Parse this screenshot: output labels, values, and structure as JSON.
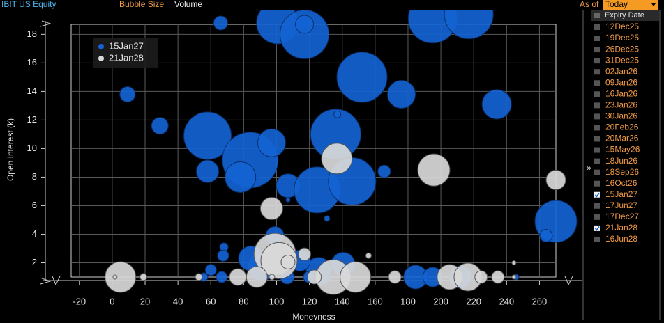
{
  "header": {
    "ticker": "IBIT US Equity",
    "bubble_size_label": "Bubble Size",
    "bubble_size_value": "Volume",
    "as_of_label": "As of",
    "as_of_value": "Today"
  },
  "expiry_panel": {
    "toggle": "»",
    "header": "Expiry Date",
    "items": [
      {
        "label": "12Dec25",
        "checked": false
      },
      {
        "label": "19Dec25",
        "checked": false
      },
      {
        "label": "26Dec25",
        "checked": false
      },
      {
        "label": "31Dec25",
        "checked": false
      },
      {
        "label": "02Jan26",
        "checked": false
      },
      {
        "label": "09Jan26",
        "checked": false
      },
      {
        "label": "16Jan26",
        "checked": false
      },
      {
        "label": "23Jan26",
        "checked": false
      },
      {
        "label": "30Jan26",
        "checked": false
      },
      {
        "label": "20Feb26",
        "checked": false
      },
      {
        "label": "20Mar26",
        "checked": false
      },
      {
        "label": "15May26",
        "checked": false
      },
      {
        "label": "18Jun26",
        "checked": false
      },
      {
        "label": "18Sep26",
        "checked": false
      },
      {
        "label": "16Oct26",
        "checked": false
      },
      {
        "label": "15Jan27",
        "checked": true
      },
      {
        "label": "17Jun27",
        "checked": false
      },
      {
        "label": "17Dec27",
        "checked": false
      },
      {
        "label": "21Jan28",
        "checked": true
      },
      {
        "label": "16Jun28",
        "checked": false
      }
    ]
  },
  "chart_data": {
    "type": "bubble",
    "x_label": "Moneyness",
    "y_label": "Open Interest (k)",
    "xlim": [
      -25,
      270
    ],
    "ylim": [
      1,
      18.7
    ],
    "xticks": [
      -20,
      0,
      20,
      40,
      60,
      80,
      100,
      120,
      140,
      160,
      180,
      200,
      220,
      240,
      260
    ],
    "yticks": [
      2,
      4,
      6,
      8,
      10,
      12,
      14,
      16,
      18
    ],
    "grid": true,
    "legend": "upper left",
    "series": [
      {
        "name": "15Jan27",
        "color": "#1463d4",
        "x": [
          66,
          100.6,
          117,
          117,
          195,
          217,
          9.3,
          29,
          58,
          58,
          84,
          97,
          78,
          107,
          136,
          137,
          124.7,
          146,
          152,
          176,
          234,
          165.5,
          130.7,
          107,
          270,
          264,
          99,
          68,
          67.5,
          90.8,
          84.5,
          125.6,
          140.5,
          60,
          114.2,
          55.6,
          66.6,
          106.5,
          119.7,
          127.8,
          184.6,
          195,
          212,
          245.8
        ],
        "values": [
          18.8,
          18.8,
          18,
          18.7,
          19.1,
          19.4,
          13.8,
          11.6,
          10.9,
          8.4,
          9.2,
          10.4,
          8,
          7.4,
          11,
          12.4,
          7.1,
          7.7,
          15,
          13.8,
          13.1,
          8.4,
          5.1,
          6.4,
          4.9,
          3.9,
          3.9,
          3.1,
          2.5,
          1.7,
          2.3,
          1.5,
          1.9,
          1.5,
          2.15,
          1,
          1,
          1,
          1,
          1,
          1,
          1,
          1,
          1
        ],
        "sizes": [
          100,
          900,
          1225,
          169,
          1225,
          1225,
          121,
          144,
          1156,
          256,
          1600,
          400,
          484,
          289,
          1296,
          25,
          1089,
          1156,
          1296,
          400,
          441,
          81,
          16,
          9,
          900,
          81,
          169,
          36,
          64,
          400,
          324,
          324,
          289,
          64,
          225,
          36,
          64,
          100,
          64,
          144,
          289,
          196,
          256,
          16
        ]
      },
      {
        "name": "21Jan28",
        "color": "#d9d9d9",
        "x": [
          136.7,
          195.7,
          270,
          97,
          99,
          101.5,
          117,
          107,
          156,
          244.5,
          5,
          19,
          52.7,
          76.4,
          88,
          97.2,
          134.5,
          148,
          123,
          172,
          205.4,
          216.5,
          224.5,
          234.7,
          244.5,
          1.7
        ],
        "values": [
          9.3,
          8.5,
          7.8,
          5.8,
          2.6,
          2.15,
          2.6,
          2.05,
          2.5,
          2,
          1,
          1,
          1,
          1,
          1,
          1,
          1,
          1,
          1,
          1,
          1,
          1,
          1,
          1,
          1,
          1
        ],
        "sizes": [
          484,
          529,
          196,
          256,
          900,
          676,
          81,
          100,
          16,
          9,
          484,
          25,
          25,
          144,
          225,
          16,
          625,
          484,
          100,
          81,
          324,
          400,
          81,
          81,
          9,
          9
        ]
      }
    ]
  }
}
